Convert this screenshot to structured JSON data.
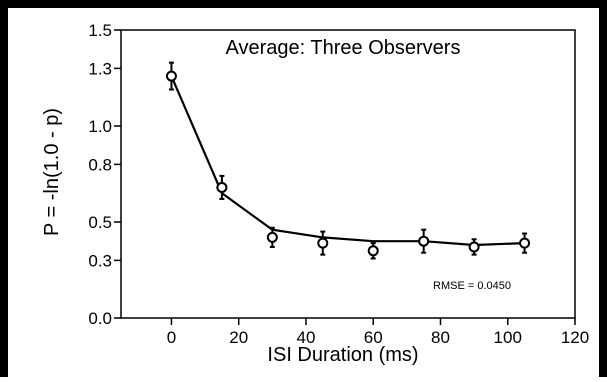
{
  "chart_data": {
    "type": "scatter",
    "title": "Average: Three Observers",
    "xlabel": "ISI Duration (ms)",
    "ylabel": "P = -ln(1.0 - p)",
    "xlim": [
      -15,
      120
    ],
    "ylim": [
      0,
      1.5
    ],
    "x_ticks": [
      0,
      20,
      40,
      60,
      80,
      100,
      120
    ],
    "x_tick_labels": [
      "0",
      "20",
      "40",
      "60",
      "80",
      "100",
      "120"
    ],
    "y_ticks": [
      0.0,
      0.3,
      0.5,
      0.8,
      1.0,
      1.3,
      1.5
    ],
    "y_tick_labels": [
      "0.0",
      "0.3",
      "0.5",
      "0.8",
      "1.0",
      "1.3",
      "1.5"
    ],
    "annotation": "RMSE = 0.0450",
    "grid": false,
    "legend": "none",
    "series": [
      {
        "kind": "points",
        "x": [
          0,
          15,
          30,
          45,
          60,
          75,
          90,
          105
        ],
        "y": [
          1.26,
          0.68,
          0.42,
          0.39,
          0.35,
          0.4,
          0.37,
          0.39
        ],
        "err": [
          0.07,
          0.06,
          0.05,
          0.06,
          0.04,
          0.06,
          0.04,
          0.05
        ]
      },
      {
        "kind": "fit-line",
        "x": [
          0,
          15,
          30,
          45,
          60,
          75,
          90,
          105
        ],
        "y": [
          1.26,
          0.65,
          0.46,
          0.42,
          0.4,
          0.4,
          0.38,
          0.39
        ]
      }
    ]
  }
}
